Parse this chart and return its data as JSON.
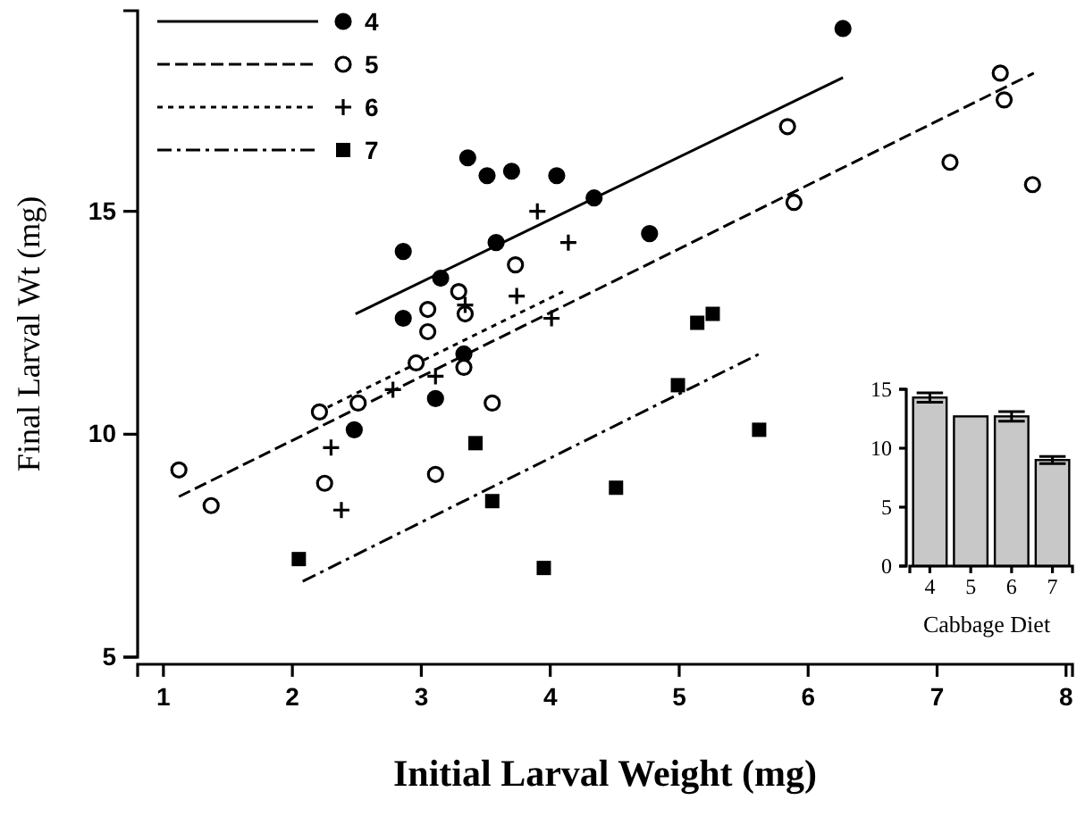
{
  "chart_data": [
    {
      "type": "scatter",
      "xlabel": "Initial Larval Weight (mg)",
      "ylabel": "Final Larval Wt (mg)",
      "xlim": [
        0.8,
        8.05
      ],
      "ylim": [
        5,
        19.5
      ],
      "xticks": [
        1,
        2,
        3,
        4,
        5,
        6,
        7,
        8
      ],
      "yticks": [
        5,
        10,
        15
      ],
      "legend": "top left",
      "series": [
        {
          "name": "4",
          "type": "scatter",
          "marker": "circle",
          "line_style": "solid",
          "color": "#000000",
          "x": [
            3.36,
            3.51,
            3.7,
            4.05,
            4.34,
            3.58,
            2.86,
            3.15,
            2.86,
            3.33,
            3.11,
            2.48,
            4.77,
            6.27
          ],
          "values": [
            16.2,
            15.8,
            15.9,
            15.8,
            15.3,
            14.3,
            14.1,
            13.5,
            12.6,
            11.8,
            10.8,
            10.1,
            14.5,
            19.1
          ]
        },
        {
          "name": "5",
          "type": "scatter",
          "marker": "circle",
          "line_style": "dashed",
          "color": "#ffffff",
          "x": [
            3.73,
            3.29,
            3.05,
            3.34,
            3.05,
            2.96,
            3.33,
            3.55,
            2.51,
            2.21,
            1.12,
            1.37,
            2.25,
            3.11,
            5.84,
            5.89,
            7.49,
            7.52,
            7.1,
            7.74
          ],
          "values": [
            13.8,
            13.2,
            12.8,
            12.7,
            12.3,
            11.6,
            11.5,
            10.7,
            10.7,
            10.5,
            9.2,
            8.4,
            8.9,
            9.1,
            16.9,
            15.2,
            18.1,
            17.5,
            16.1,
            15.6
          ]
        },
        {
          "name": "6",
          "type": "scatter",
          "marker": "cross",
          "line_style": "dotted",
          "color": "#000000",
          "x": [
            3.9,
            4.14,
            3.74,
            3.34,
            4.01,
            3.11,
            2.78,
            2.3,
            2.38
          ],
          "values": [
            15.0,
            14.3,
            13.1,
            12.9,
            12.6,
            11.3,
            11.0,
            9.7,
            8.3
          ]
        },
        {
          "name": "7",
          "type": "scatter",
          "marker": "square",
          "line_style": "dashdot",
          "color": "#000000",
          "x": [
            3.42,
            3.55,
            2.05,
            3.95,
            5.14,
            5.26,
            4.99,
            5.62,
            4.51
          ],
          "values": [
            9.8,
            8.5,
            7.2,
            7.0,
            12.5,
            12.7,
            11.1,
            10.1,
            8.8
          ]
        },
        {
          "type": "line",
          "line_style": "solid",
          "color": "#000000",
          "x": [
            2.49,
            6.27
          ],
          "values": [
            12.7,
            18.0
          ]
        },
        {
          "type": "line",
          "line_style": "dashed",
          "color": "#000000",
          "x": [
            1.12,
            7.75
          ],
          "values": [
            8.6,
            18.1
          ]
        },
        {
          "type": "line",
          "line_style": "dotted",
          "color": "#000000",
          "x": [
            2.2,
            4.1
          ],
          "values": [
            10.5,
            13.2
          ]
        },
        {
          "type": "line",
          "line_style": "dashdot",
          "color": "#000000",
          "x": [
            2.08,
            5.62
          ],
          "values": [
            6.7,
            11.8
          ]
        }
      ]
    },
    {
      "type": "bar",
      "xlabel": "Cabbage Diet",
      "categories": [
        "4",
        "5",
        "6",
        "7"
      ],
      "values": [
        14.3,
        12.7,
        12.7,
        9.0
      ],
      "errors": [
        0.4,
        null,
        0.4,
        0.3
      ],
      "color": "#c8c8c8",
      "ylim": [
        0,
        15
      ],
      "yticks": [
        0,
        5,
        10,
        15
      ]
    }
  ]
}
